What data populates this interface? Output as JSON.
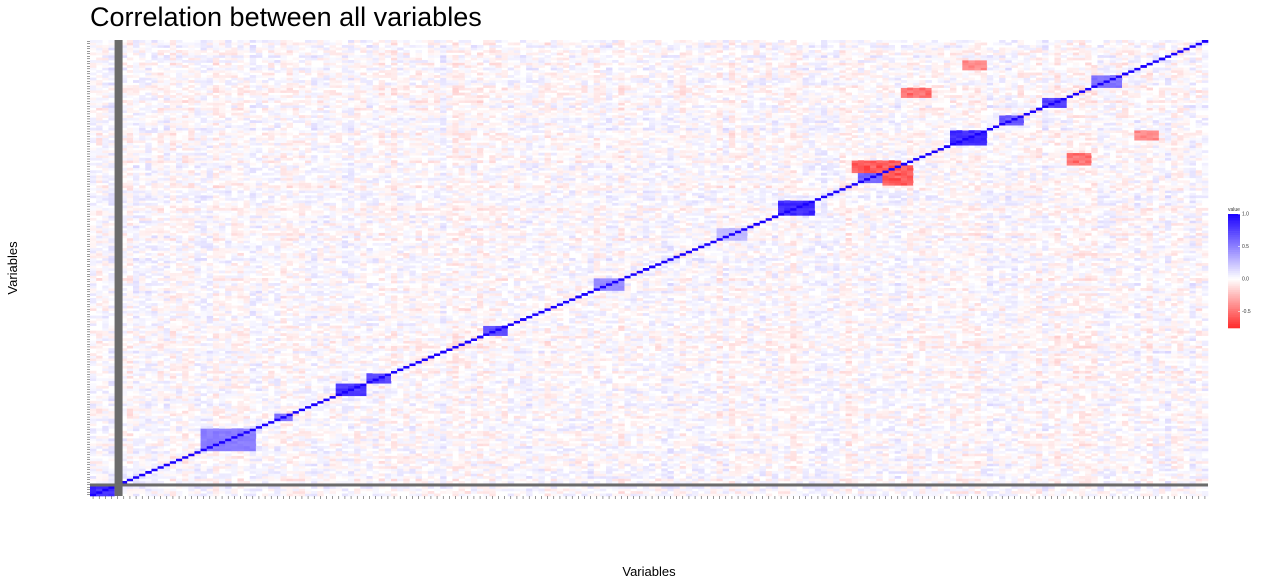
{
  "chart_data": {
    "type": "heatmap",
    "title": "Correlation between all variables",
    "xlabel": "Variables",
    "ylabel": "Variables",
    "legend": {
      "title": "value",
      "ticks": [
        1.0,
        0.5,
        0.0,
        -0.5
      ],
      "tick_labels": [
        "1.0",
        "0.5",
        "0.0",
        "-0.5"
      ],
      "range": [
        -0.75,
        1.0
      ],
      "placement": "right"
    },
    "color_scale": {
      "negative": "#ff2b2b",
      "zero": "#ffffff",
      "positive": "#1a00ff",
      "missing": "#6b6b6b"
    },
    "n_variables": 182,
    "missing_variable_index": 4,
    "diagonal": 1.0,
    "blocks": [
      {
        "from": 0,
        "to": 3,
        "value": 0.9
      },
      {
        "from": 18,
        "to": 26,
        "value": 0.55
      },
      {
        "from": 30,
        "to": 32,
        "value": 0.6
      },
      {
        "from": 40,
        "to": 44,
        "value": 0.85
      },
      {
        "from": 45,
        "to": 48,
        "value": 0.8
      },
      {
        "from": 64,
        "to": 67,
        "value": 0.75
      },
      {
        "from": 82,
        "to": 86,
        "value": 0.5
      },
      {
        "from": 102,
        "to": 106,
        "value": 0.3
      },
      {
        "from": 112,
        "to": 117,
        "value": 0.9
      },
      {
        "from": 125,
        "to": 131,
        "value": 0.65
      },
      {
        "from": 140,
        "to": 145,
        "value": 0.9
      },
      {
        "from": 148,
        "to": 151,
        "value": 0.7
      },
      {
        "from": 155,
        "to": 158,
        "value": 0.8
      },
      {
        "from": 163,
        "to": 167,
        "value": 0.6
      }
    ],
    "anti_blocks": [
      {
        "rows": [
          129,
          133
        ],
        "cols": [
          124,
          131
        ],
        "value": -0.7
      },
      {
        "rows": [
          132,
          136
        ],
        "cols": [
          159,
          162
        ],
        "value": -0.6
      },
      {
        "rows": [
          142,
          145
        ],
        "cols": [
          170,
          173
        ],
        "value": -0.5
      }
    ]
  }
}
